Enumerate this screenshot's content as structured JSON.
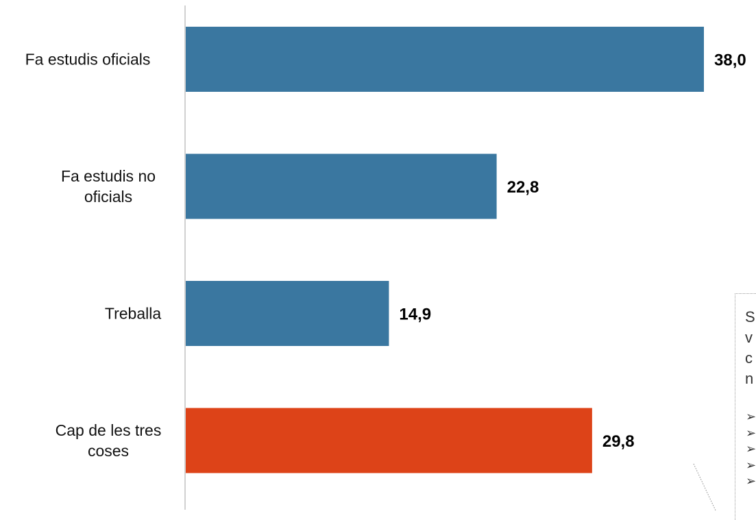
{
  "chart_data": {
    "type": "bar",
    "orientation": "horizontal",
    "categories": [
      "Fa estudis oficials",
      "Fa estudis no oficials",
      "Treballa",
      "Cap de les tres coses"
    ],
    "category_lines": [
      [
        "Fa estudis oficials"
      ],
      [
        "Fa estudis no",
        "oficials"
      ],
      [
        "Treballa"
      ],
      [
        "Cap de les tres",
        "coses"
      ]
    ],
    "values": [
      38.0,
      22.8,
      14.9,
      29.8
    ],
    "value_labels": [
      "38,0",
      "22,8",
      "14,9",
      "29,8"
    ],
    "bar_colors": [
      "#3a77a0",
      "#3a77a0",
      "#3a77a0",
      "#dd4318"
    ],
    "xlim": [
      0,
      38.0
    ],
    "grid": false,
    "legend": "none"
  },
  "note_panel": {
    "text_fragment": "S\nv\nc\nn",
    "bullet_glyph": "➢",
    "bullet_count": 5
  },
  "colors": {
    "bar_blue": "#3a77a0",
    "bar_orange": "#dd4318",
    "axis": "#d0d0d0"
  }
}
